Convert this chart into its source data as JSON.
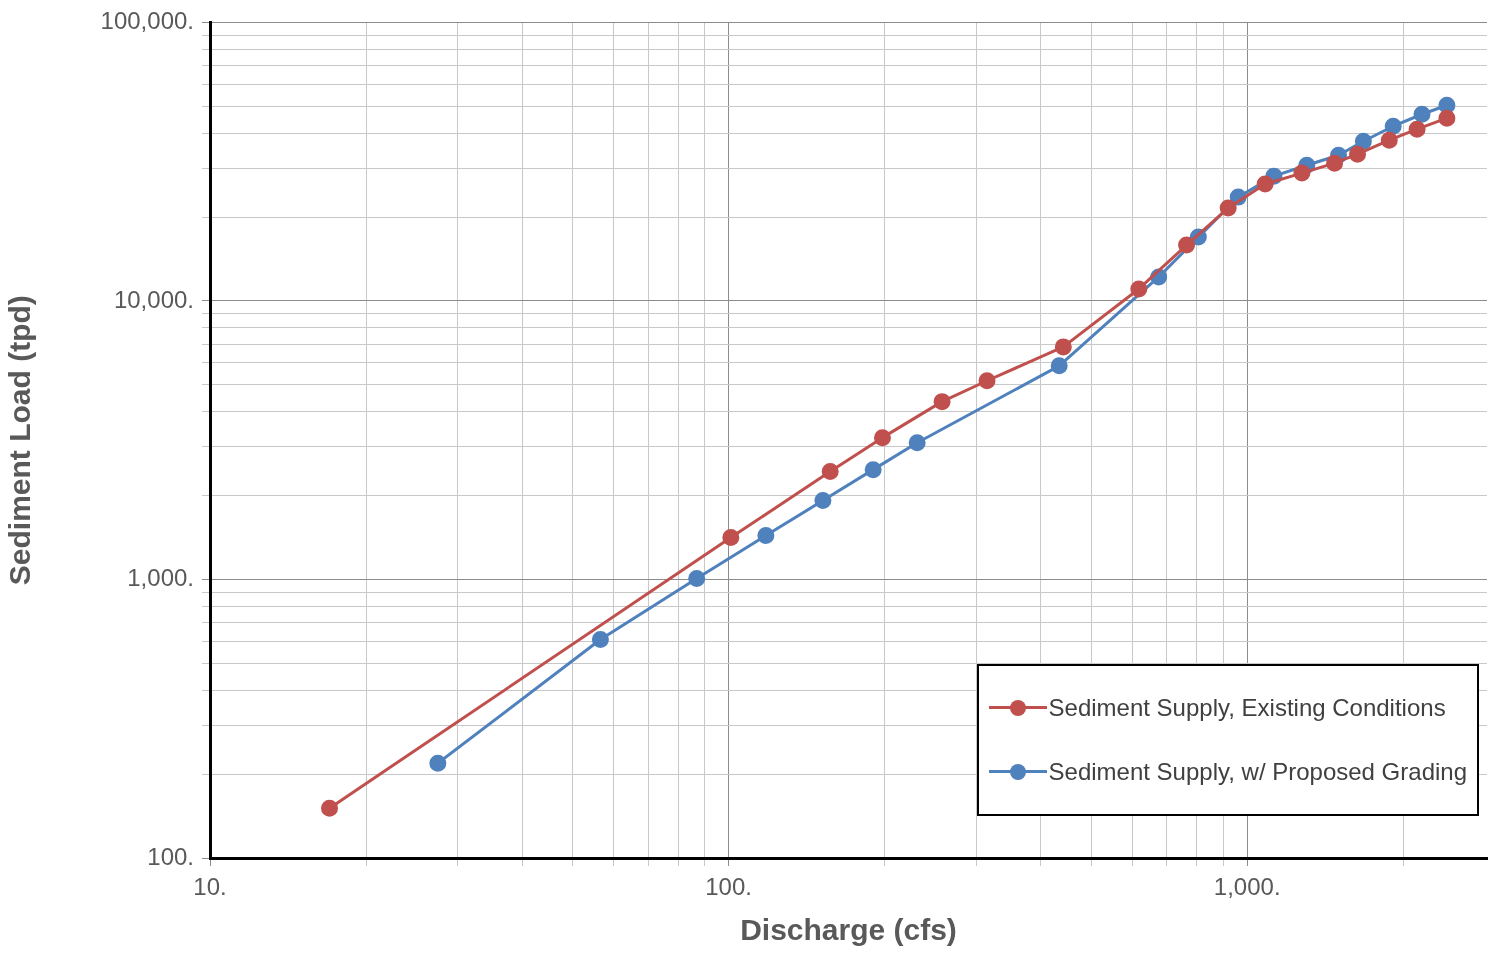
{
  "chart_data": {
    "type": "line",
    "xlabel": "Discharge (cfs)",
    "ylabel": "Sediment Load (tpd)",
    "log": "xy",
    "grid": true,
    "legend": "bottom right",
    "marker": "circle",
    "line_style": "solid",
    "xlim": [
      10,
      2900
    ],
    "ylim": [
      100,
      100000
    ],
    "xticks": [
      {
        "value": 10,
        "label": "10."
      },
      {
        "value": 20,
        "label": null
      },
      {
        "value": 30,
        "label": null
      },
      {
        "value": 40,
        "label": null
      },
      {
        "value": 50,
        "label": null
      },
      {
        "value": 60,
        "label": null
      },
      {
        "value": 70,
        "label": null
      },
      {
        "value": 80,
        "label": null
      },
      {
        "value": 90,
        "label": null
      },
      {
        "value": 100,
        "label": "100."
      },
      {
        "value": 200,
        "label": null
      },
      {
        "value": 300,
        "label": null
      },
      {
        "value": 400,
        "label": null
      },
      {
        "value": 500,
        "label": null
      },
      {
        "value": 600,
        "label": null
      },
      {
        "value": 700,
        "label": null
      },
      {
        "value": 800,
        "label": null
      },
      {
        "value": 900,
        "label": null
      },
      {
        "value": 1000,
        "label": "1,000."
      },
      {
        "value": 2000,
        "label": null
      }
    ],
    "yticks": [
      {
        "value": 100,
        "label": "100."
      },
      {
        "value": 200,
        "label": null
      },
      {
        "value": 300,
        "label": null
      },
      {
        "value": 400,
        "label": null
      },
      {
        "value": 500,
        "label": null
      },
      {
        "value": 600,
        "label": null
      },
      {
        "value": 700,
        "label": null
      },
      {
        "value": 800,
        "label": null
      },
      {
        "value": 900,
        "label": null
      },
      {
        "value": 1000,
        "label": "1,000."
      },
      {
        "value": 2000,
        "label": null
      },
      {
        "value": 3000,
        "label": null
      },
      {
        "value": 4000,
        "label": null
      },
      {
        "value": 5000,
        "label": null
      },
      {
        "value": 6000,
        "label": null
      },
      {
        "value": 7000,
        "label": null
      },
      {
        "value": 8000,
        "label": null
      },
      {
        "value": 9000,
        "label": null
      },
      {
        "value": 10000,
        "label": "10,000."
      },
      {
        "value": 20000,
        "label": null
      },
      {
        "value": 30000,
        "label": null
      },
      {
        "value": 40000,
        "label": null
      },
      {
        "value": 50000,
        "label": null
      },
      {
        "value": 60000,
        "label": null
      },
      {
        "value": 70000,
        "label": null
      },
      {
        "value": 80000,
        "label": null
      },
      {
        "value": 90000,
        "label": null
      },
      {
        "value": 100000,
        "label": "100,000."
      }
    ],
    "series": [
      {
        "name": "Sediment Supply, Existing Conditions",
        "color": "#c0504d",
        "x": [
          17,
          101,
          157,
          198,
          258,
          315,
          442,
          618,
          764,
          919,
          1083,
          1275,
          1474,
          1632,
          1879,
          2126,
          2427
        ],
        "values": [
          151,
          1414,
          2440,
          3230,
          4350,
          5170,
          6840,
          11040,
          15870,
          21540,
          26270,
          28770,
          31230,
          33650,
          37760,
          41360,
          45290
        ]
      },
      {
        "name": "Sediment Supply, w/ Proposed Grading",
        "color": "#4f81bd",
        "x": [
          27.5,
          56.6,
          86.8,
          118,
          152,
          190,
          231,
          434,
          675,
          805,
          961,
          1126,
          1303,
          1500,
          1675,
          1912,
          2173,
          2427
        ],
        "values": [
          219,
          609,
          1008,
          1438,
          1920,
          2479,
          3097,
          5848,
          12190,
          16950,
          23590,
          28060,
          30710,
          33360,
          37430,
          42390,
          46800,
          50400
        ]
      }
    ]
  }
}
